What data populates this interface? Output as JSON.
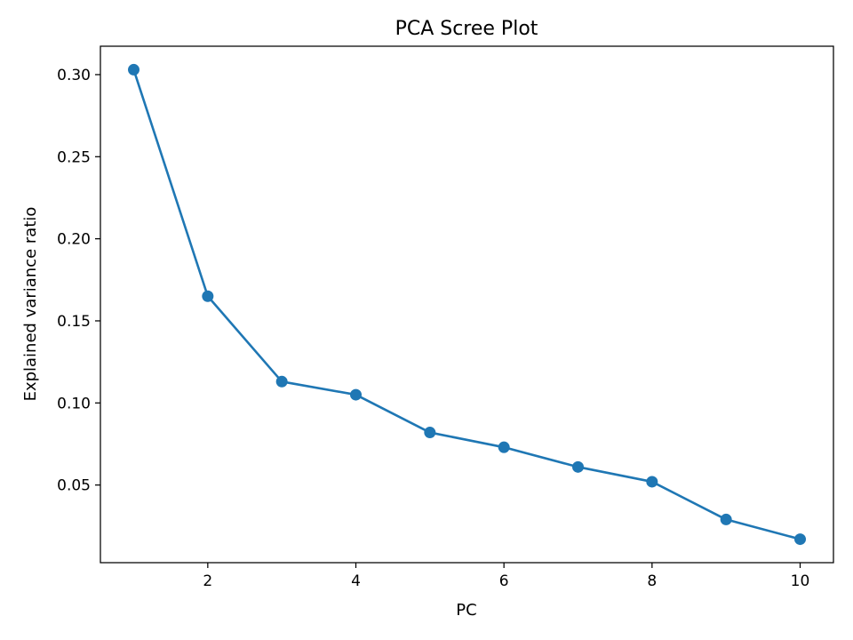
{
  "chart_data": {
    "type": "line",
    "title": "PCA Scree Plot",
    "xlabel": "PC",
    "ylabel": "Explained variance ratio",
    "x": [
      1,
      2,
      3,
      4,
      5,
      6,
      7,
      8,
      9,
      10
    ],
    "series": [
      {
        "values": [
          0.303,
          0.165,
          0.113,
          0.105,
          0.082,
          0.073,
          0.061,
          0.052,
          0.029,
          0.017
        ],
        "color": "#1f77b4",
        "marker": "circle"
      }
    ],
    "xticks": [
      2,
      4,
      6,
      8,
      10
    ],
    "xtick_labels": [
      "2",
      "4",
      "6",
      "8",
      "10"
    ],
    "yticks": [
      0.05,
      0.1,
      0.15,
      0.2,
      0.25,
      0.3
    ],
    "ytick_labels": [
      "0.05",
      "0.10",
      "0.15",
      "0.20",
      "0.25",
      "0.30"
    ],
    "xlim": [
      0.55,
      10.45
    ],
    "ylim": [
      0.0027,
      0.3173
    ],
    "grid": false
  }
}
